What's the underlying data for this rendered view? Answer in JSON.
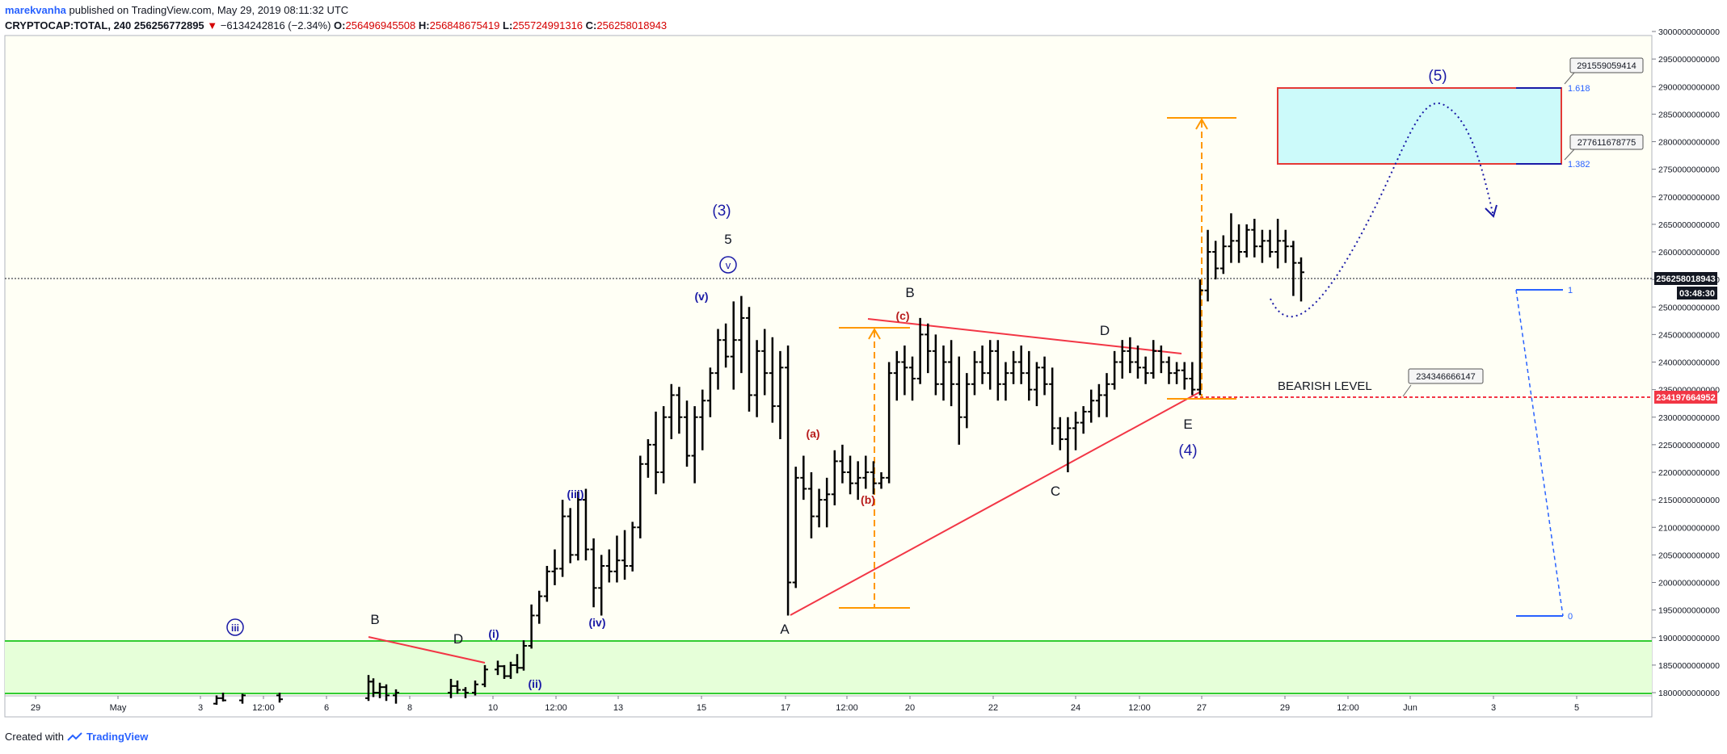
{
  "header": {
    "author": "marekvanha",
    "published": "published on TradingView.com, May 29, 2019 08:11:32 UTC",
    "symbol": "CRYPTOCAP:TOTAL, 240",
    "last": "256256772895",
    "change_arrow": "▼",
    "change": "−6134242816 (−2.34%)",
    "o_label": "O:",
    "o_value": "256496945508",
    "h_label": "H:",
    "h_value": "256848675419",
    "l_label": "L:",
    "l_value": "255724991316",
    "c_label": "C:",
    "c_value": "256258018943"
  },
  "footer": {
    "created_with": "Created with",
    "brand": "TradingView",
    "logo_icon": "tradingview-logo-icon"
  },
  "colors": {
    "candle": "#000000",
    "wave_blue": "#1a1aa6",
    "wave_red": "#b71c1c",
    "trend_red": "#f23645",
    "fib_orange": "#ff9800",
    "target_fill": "#ccfafa",
    "support_fill": "#e6ffd9",
    "support_border": "#33cc33"
  },
  "chart_data": {
    "type": "bar",
    "ohlc_style": "ohlc-bars",
    "ylim": [
      1780000000000,
      3010000000000
    ],
    "y_tick_labels": [
      "3000000000000",
      "2950000000000",
      "2900000000000",
      "2850000000000",
      "2800000000000",
      "2750000000000",
      "2700000000000",
      "2650000000000",
      "2600000000000",
      "2550000000000",
      "2500000000000",
      "2450000000000",
      "2400000000000",
      "2350000000000",
      "2300000000000",
      "2250000000000",
      "2200000000000",
      "2150000000000",
      "2100000000000",
      "2050000000000",
      "2000000000000",
      "1950000000000",
      "1900000000000",
      "1850000000000",
      "1800000000000"
    ],
    "x_tick_labels": [
      "29",
      "May",
      "3",
      "12:00",
      "6",
      "8",
      "10",
      "12:00",
      "13",
      "15",
      "17",
      "12:00",
      "20",
      "22",
      "24",
      "12:00",
      "27",
      "29",
      "12:00",
      "Jun",
      "3",
      "5"
    ],
    "price_label": "256258018943",
    "countdown_label": "03:48:30",
    "bearish_price_label": "234197664952",
    "ohlc": [
      [
        1780,
        1795,
        1778,
        1790
      ],
      [
        1790,
        1800,
        1784,
        1786
      ],
      [
        1786,
        1798,
        1780,
        1795
      ],
      [
        1795,
        1800,
        1782,
        1788
      ],
      [
        1790,
        1832,
        1785,
        1820
      ],
      [
        1820,
        1826,
        1792,
        1800
      ],
      [
        1800,
        1818,
        1790,
        1810
      ],
      [
        1810,
        1815,
        1785,
        1795
      ],
      [
        1795,
        1806,
        1780,
        1800
      ],
      [
        1800,
        1825,
        1790,
        1812
      ],
      [
        1812,
        1822,
        1798,
        1805
      ],
      [
        1805,
        1810,
        1790,
        1800
      ],
      [
        1800,
        1822,
        1795,
        1815
      ],
      [
        1815,
        1850,
        1810,
        1842
      ],
      [
        1842,
        1858,
        1832,
        1848
      ],
      [
        1848,
        1850,
        1825,
        1830
      ],
      [
        1830,
        1856,
        1825,
        1850
      ],
      [
        1850,
        1870,
        1835,
        1845
      ],
      [
        1845,
        1895,
        1840,
        1885
      ],
      [
        1885,
        1960,
        1880,
        1940
      ],
      [
        1940,
        1985,
        1925,
        1975
      ],
      [
        1975,
        2030,
        1965,
        2020
      ],
      [
        2020,
        2060,
        1995,
        2025
      ],
      [
        2025,
        2150,
        2010,
        2120
      ],
      [
        2120,
        2135,
        2035,
        2050
      ],
      [
        2050,
        2165,
        2040,
        2150
      ],
      [
        2150,
        2170,
        2040,
        2060
      ],
      [
        2060,
        2080,
        1955,
        1990
      ],
      [
        1990,
        2050,
        1940,
        2030
      ],
      [
        2030,
        2060,
        2000,
        2020
      ],
      [
        2020,
        2085,
        2000,
        2040
      ],
      [
        2040,
        2095,
        2005,
        2030
      ],
      [
        2030,
        2110,
        2020,
        2100
      ],
      [
        2100,
        2230,
        2080,
        2215
      ],
      [
        2215,
        2260,
        2190,
        2250
      ],
      [
        2250,
        2310,
        2160,
        2200
      ],
      [
        2200,
        2320,
        2180,
        2300
      ],
      [
        2300,
        2360,
        2260,
        2340
      ],
      [
        2340,
        2355,
        2270,
        2300
      ],
      [
        2300,
        2330,
        2210,
        2230
      ],
      [
        2230,
        2320,
        2180,
        2300
      ],
      [
        2300,
        2350,
        2240,
        2330
      ],
      [
        2330,
        2390,
        2300,
        2380
      ],
      [
        2380,
        2460,
        2350,
        2440
      ],
      [
        2440,
        2470,
        2390,
        2410
      ],
      [
        2410,
        2510,
        2350,
        2440
      ],
      [
        2440,
        2520,
        2380,
        2480
      ],
      [
        2480,
        2500,
        2310,
        2340
      ],
      [
        2340,
        2440,
        2300,
        2420
      ],
      [
        2420,
        2460,
        2340,
        2380
      ],
      [
        2380,
        2445,
        2290,
        2320
      ],
      [
        2320,
        2420,
        2260,
        2390
      ],
      [
        2390,
        2430,
        1940,
        2000
      ],
      [
        2000,
        2210,
        1990,
        2190
      ],
      [
        2190,
        2230,
        2150,
        2170
      ],
      [
        2170,
        2200,
        2080,
        2120
      ],
      [
        2120,
        2170,
        2100,
        2150
      ],
      [
        2150,
        2190,
        2100,
        2160
      ],
      [
        2160,
        2240,
        2140,
        2220
      ],
      [
        2220,
        2250,
        2180,
        2200
      ],
      [
        2200,
        2230,
        2160,
        2180
      ],
      [
        2180,
        2220,
        2150,
        2190
      ],
      [
        2190,
        2230,
        2170,
        2200
      ],
      [
        2200,
        2220,
        2160,
        2180
      ],
      [
        2180,
        2200,
        2170,
        2190
      ],
      [
        2190,
        2400,
        2180,
        2380
      ],
      [
        2380,
        2420,
        2330,
        2400
      ],
      [
        2400,
        2430,
        2340,
        2390
      ],
      [
        2390,
        2410,
        2330,
        2370
      ],
      [
        2370,
        2480,
        2360,
        2450
      ],
      [
        2450,
        2470,
        2380,
        2420
      ],
      [
        2420,
        2450,
        2340,
        2360
      ],
      [
        2360,
        2430,
        2330,
        2400
      ],
      [
        2400,
        2440,
        2320,
        2360
      ],
      [
        2360,
        2410,
        2250,
        2300
      ],
      [
        2300,
        2380,
        2280,
        2360
      ],
      [
        2360,
        2420,
        2340,
        2400
      ],
      [
        2400,
        2430,
        2360,
        2380
      ],
      [
        2380,
        2440,
        2350,
        2420
      ],
      [
        2420,
        2440,
        2330,
        2360
      ],
      [
        2360,
        2400,
        2330,
        2380
      ],
      [
        2380,
        2420,
        2360,
        2400
      ],
      [
        2400,
        2430,
        2360,
        2380
      ],
      [
        2380,
        2420,
        2330,
        2350
      ],
      [
        2350,
        2400,
        2320,
        2390
      ],
      [
        2390,
        2410,
        2340,
        2360
      ],
      [
        2360,
        2390,
        2250,
        2280
      ],
      [
        2280,
        2300,
        2240,
        2260
      ],
      [
        2260,
        2300,
        2200,
        2280
      ],
      [
        2280,
        2310,
        2240,
        2290
      ],
      [
        2290,
        2320,
        2270,
        2310
      ],
      [
        2310,
        2350,
        2290,
        2330
      ],
      [
        2330,
        2360,
        2300,
        2340
      ],
      [
        2340,
        2380,
        2300,
        2360
      ],
      [
        2360,
        2420,
        2350,
        2400
      ],
      [
        2400,
        2440,
        2370,
        2420
      ],
      [
        2420,
        2445,
        2380,
        2400
      ],
      [
        2400,
        2430,
        2370,
        2390
      ],
      [
        2390,
        2410,
        2360,
        2380
      ],
      [
        2380,
        2440,
        2370,
        2420
      ],
      [
        2420,
        2430,
        2380,
        2400
      ],
      [
        2400,
        2410,
        2360,
        2380
      ],
      [
        2380,
        2400,
        2360,
        2385
      ],
      [
        2385,
        2400,
        2350,
        2370
      ],
      [
        2370,
        2400,
        2340,
        2350
      ],
      [
        2350,
        2550,
        2340,
        2530
      ],
      [
        2530,
        2640,
        2510,
        2600
      ],
      [
        2600,
        2620,
        2550,
        2570
      ],
      [
        2570,
        2630,
        2560,
        2610
      ],
      [
        2610,
        2670,
        2580,
        2620
      ],
      [
        2620,
        2650,
        2580,
        2600
      ],
      [
        2600,
        2650,
        2590,
        2640
      ],
      [
        2640,
        2660,
        2590,
        2610
      ],
      [
        2610,
        2640,
        2580,
        2620
      ],
      [
        2620,
        2640,
        2590,
        2600
      ],
      [
        2600,
        2660,
        2570,
        2620
      ],
      [
        2620,
        2640,
        2580,
        2610
      ],
      [
        2610,
        2620,
        2520,
        2580
      ],
      [
        2580,
        2590,
        2510,
        2563
      ]
    ]
  },
  "annotations": {
    "wave3": "(3)",
    "wave5_top": "5",
    "wave_v_circle": "v",
    "wave_v": "(v)",
    "wave_iii": "(iii)",
    "wave_iv": "(iv)",
    "wave_i": "(i)",
    "wave_ii": "(ii)",
    "wave_iii_circle": "iii",
    "a_label": "A",
    "b_label": "B",
    "c_label": "C",
    "d_label": "D",
    "e_label": "E",
    "b_left": "B",
    "d_left": "D",
    "sub_a": "(a)",
    "sub_b": "(b)",
    "sub_c": "(c)",
    "wave4": "(4)",
    "wave5": "(5)",
    "bearish_level": "BEARISH LEVEL",
    "bearish_value_box": "234346666147",
    "target_upper_box": "291559059414",
    "target_lower_box": "277611678775",
    "fib_1618": "1.618",
    "fib_1382": "1.382",
    "fib_1": "1",
    "fib_0": "0"
  }
}
